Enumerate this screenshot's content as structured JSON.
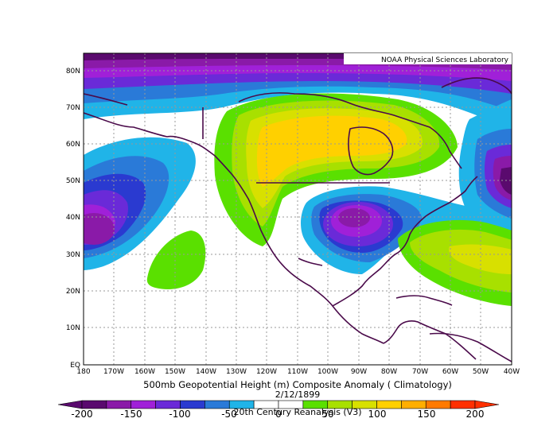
{
  "lab_label": "NOAA Physical Sciences Laboratory",
  "title": "500mb Geopotential Height (m) Composite Anomaly ( Climatology)",
  "date": "2/12/1899",
  "dataset": "20th Century Reanalysis (V3)",
  "lat_labels": [
    "80N",
    "70N",
    "60N",
    "50N",
    "40N",
    "30N",
    "20N",
    "10N",
    "EQ"
  ],
  "lon_labels": [
    "180",
    "170W",
    "160W",
    "150W",
    "140W",
    "130W",
    "120W",
    "110W",
    "100W",
    "90W",
    "80W",
    "70W",
    "60W",
    "50W",
    "40W"
  ],
  "colorbar": {
    "labels": [
      "-200",
      "-150",
      "-100",
      "-50",
      "0",
      "50",
      "100",
      "150",
      "200"
    ],
    "colors": [
      "#5a0a6e",
      "#8a1aa8",
      "#a020d8",
      "#6a2ad8",
      "#2a3ad0",
      "#2a7ad8",
      "#20b4e8",
      "#ffffff",
      "#ffffff",
      "#5ae000",
      "#a8e000",
      "#d8e000",
      "#ffd000",
      "#ffae00",
      "#ff7a00",
      "#ff3000"
    ]
  },
  "anomaly_colors": {
    "strong_low": "#5a0a6e",
    "low1": "#8a1aa8",
    "low2": "#a020d8",
    "low3": "#6a2ad8",
    "low4": "#2a3ad0",
    "low5": "#2a7ad8",
    "low6": "#20b4e8",
    "high1": "#5ae000",
    "high2": "#a8e000",
    "high3": "#d8e000",
    "high4": "#ffd000",
    "coast": "#4a0a4a",
    "grid": "#999999"
  }
}
